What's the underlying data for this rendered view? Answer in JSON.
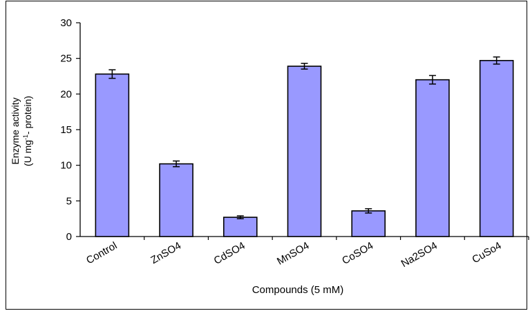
{
  "chart_data": {
    "type": "bar",
    "categories": [
      "Control",
      "ZnSO4",
      "CdSO4",
      "MnSO4",
      "CoSO4",
      "Na2SO4",
      "CuSo4"
    ],
    "values": [
      22.8,
      10.2,
      2.7,
      23.9,
      3.6,
      22.0,
      24.7
    ],
    "errors": [
      0.6,
      0.4,
      0.2,
      0.4,
      0.3,
      0.6,
      0.5
    ],
    "xlabel": "Compounds (5 mM)",
    "ylabel_line1": "Enzyme activity",
    "ylabel_line2_main": "(U mg",
    "ylabel_line2_sup": "-1",
    "ylabel_line2_end": "- protein)",
    "ylim": [
      0,
      30
    ],
    "yticks": [
      0,
      5,
      10,
      15,
      20,
      25,
      30
    ],
    "grid": false,
    "bar_color": "#9999ff",
    "bar_outline": "#000000"
  }
}
